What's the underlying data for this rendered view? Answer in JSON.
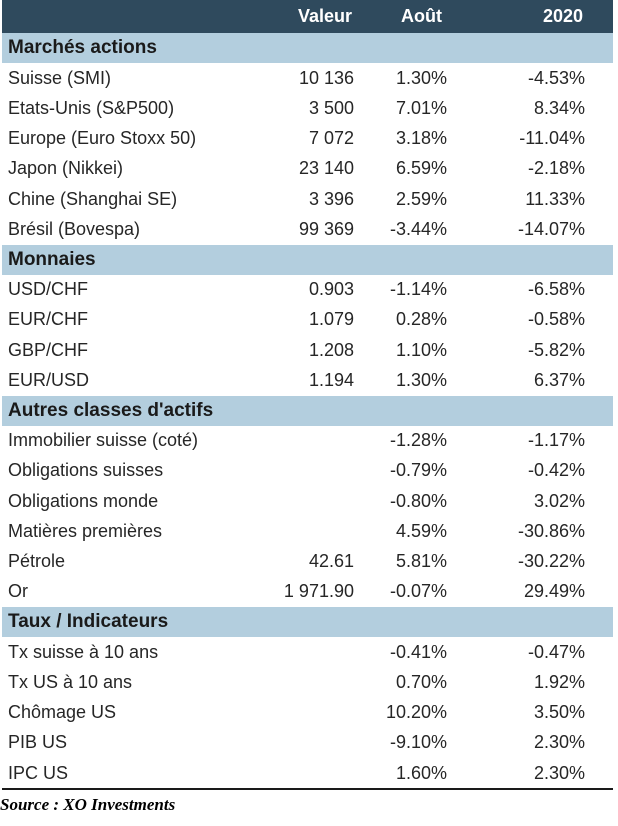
{
  "header": {
    "label": "",
    "valeur": "Valeur",
    "aout": "Août",
    "ytd": "2020"
  },
  "sections": [
    {
      "title": "Marchés actions",
      "rows": [
        {
          "label": "Suisse (SMI)",
          "valeur": "10 136",
          "aout": "1.30%",
          "ytd": "-4.53%"
        },
        {
          "label": "Etats-Unis (S&P500)",
          "valeur": "3 500",
          "aout": "7.01%",
          "ytd": "8.34%"
        },
        {
          "label": "Europe (Euro Stoxx 50)",
          "valeur": "7 072",
          "aout": "3.18%",
          "ytd": "-11.04%"
        },
        {
          "label": "Japon (Nikkei)",
          "valeur": "23 140",
          "aout": "6.59%",
          "ytd": "-2.18%"
        },
        {
          "label": "Chine (Shanghai SE)",
          "valeur": "3 396",
          "aout": "2.59%",
          "ytd": "11.33%"
        },
        {
          "label": "Brésil (Bovespa)",
          "valeur": "99 369",
          "aout": "-3.44%",
          "ytd": "-14.07%"
        }
      ]
    },
    {
      "title": "Monnaies",
      "rows": [
        {
          "label": "USD/CHF",
          "valeur": "0.903",
          "aout": "-1.14%",
          "ytd": "-6.58%"
        },
        {
          "label": "EUR/CHF",
          "valeur": "1.079",
          "aout": "0.28%",
          "ytd": "-0.58%"
        },
        {
          "label": "GBP/CHF",
          "valeur": "1.208",
          "aout": "1.10%",
          "ytd": "-5.82%"
        },
        {
          "label": "EUR/USD",
          "valeur": "1.194",
          "aout": "1.30%",
          "ytd": "6.37%"
        }
      ]
    },
    {
      "title": "Autres classes d'actifs",
      "rows": [
        {
          "label": "Immobilier suisse (coté)",
          "valeur": "",
          "aout": "-1.28%",
          "ytd": "-1.17%"
        },
        {
          "label": "Obligations suisses",
          "valeur": "",
          "aout": "-0.79%",
          "ytd": "-0.42%"
        },
        {
          "label": "Obligations monde",
          "valeur": "",
          "aout": "-0.80%",
          "ytd": "3.02%"
        },
        {
          "label": "Matières premières",
          "valeur": "",
          "aout": "4.59%",
          "ytd": "-30.86%"
        },
        {
          "label": "Pétrole",
          "valeur": "42.61",
          "aout": "5.81%",
          "ytd": "-30.22%"
        },
        {
          "label": "Or",
          "valeur": "1 971.90",
          "aout": "-0.07%",
          "ytd": "29.49%"
        }
      ]
    },
    {
      "title": "Taux / Indicateurs",
      "rows": [
        {
          "label": "Tx suisse à 10 ans",
          "valeur": "",
          "aout": "-0.41%",
          "ytd": "-0.47%"
        },
        {
          "label": "Tx US à 10 ans",
          "valeur": "",
          "aout": "0.70%",
          "ytd": "1.92%"
        },
        {
          "label": "Chômage US",
          "valeur": "",
          "aout": "10.20%",
          "ytd": "3.50%"
        },
        {
          "label": "PIB US",
          "valeur": "",
          "aout": "-9.10%",
          "ytd": "2.30%"
        },
        {
          "label": "IPC US",
          "valeur": "",
          "aout": "1.60%",
          "ytd": "2.30%"
        }
      ]
    }
  ],
  "source": "Source : XO Investments",
  "colors": {
    "header_bg": "#2f4a5d",
    "section_bg": "#b3cede",
    "alt_row_bg": "#f1f1f1"
  }
}
